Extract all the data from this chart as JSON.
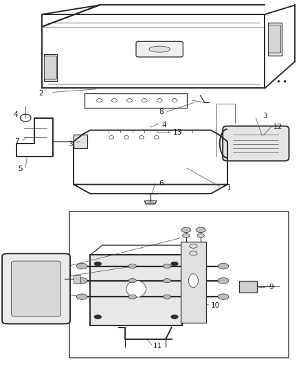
{
  "bg_color": "#ffffff",
  "line_color": "#2a2a2a",
  "label_color": "#1a1a1a",
  "label_font_size": 7.5,
  "thin_lw": 0.5,
  "med_lw": 0.9,
  "thick_lw": 1.4
}
